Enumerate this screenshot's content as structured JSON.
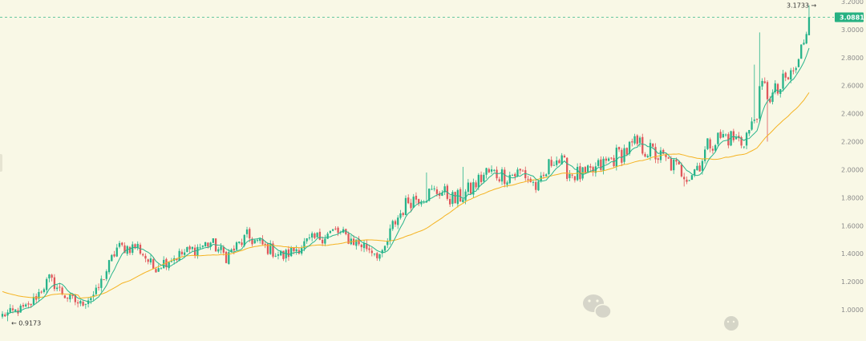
{
  "colors": {
    "background": "#f9f8e6",
    "up": "#26b38a",
    "down": "#e0575b",
    "ma_short": "#28b58c",
    "ma_long": "#f5b322",
    "grid_line": "#39b98b",
    "price_badge": "#27b182",
    "axis_text": "#8a8a8a"
  },
  "chart_data": {
    "type": "candlestick",
    "title": "",
    "y_axis": {
      "position": "right",
      "ylim": [
        0.85,
        3.2
      ],
      "ticks": [
        "3.2000",
        "3.0000",
        "2.8000",
        "2.6000",
        "2.4000",
        "2.2000",
        "2.0000",
        "1.8000",
        "1.6000",
        "1.4000",
        "1.2000",
        "1.0000"
      ]
    },
    "current_price": {
      "label": "3.0881",
      "value": 3.0881
    },
    "annotations": {
      "high": {
        "label": "3.1733 →",
        "value": 3.1733
      },
      "low": {
        "label": "← 0.9173",
        "value": 0.9173
      }
    },
    "close_anchors": [
      [
        0,
        0.96
      ],
      [
        10,
        1.02
      ],
      [
        18,
        1.22
      ],
      [
        24,
        1.1
      ],
      [
        30,
        1.04
      ],
      [
        36,
        1.12
      ],
      [
        44,
        1.44
      ],
      [
        52,
        1.45
      ],
      [
        58,
        1.3
      ],
      [
        64,
        1.36
      ],
      [
        72,
        1.42
      ],
      [
        80,
        1.48
      ],
      [
        86,
        1.38
      ],
      [
        94,
        1.52
      ],
      [
        100,
        1.46
      ],
      [
        108,
        1.38
      ],
      [
        114,
        1.45
      ],
      [
        122,
        1.52
      ],
      [
        128,
        1.56
      ],
      [
        134,
        1.5
      ],
      [
        142,
        1.43
      ],
      [
        146,
        1.38
      ],
      [
        150,
        1.6
      ],
      [
        156,
        1.78
      ],
      [
        162,
        1.82
      ],
      [
        168,
        1.85
      ],
      [
        174,
        1.78
      ],
      [
        180,
        1.86
      ],
      [
        186,
        1.98
      ],
      [
        194,
        1.96
      ],
      [
        200,
        1.98
      ],
      [
        206,
        1.86
      ],
      [
        212,
        2.1
      ],
      [
        218,
        1.98
      ],
      [
        224,
        1.95
      ],
      [
        232,
        2.05
      ],
      [
        238,
        2.12
      ],
      [
        244,
        2.18
      ],
      [
        250,
        2.12
      ],
      [
        256,
        2.05
      ],
      [
        260,
        2.0
      ],
      [
        264,
        1.96
      ],
      [
        268,
        2.05
      ],
      [
        272,
        2.2
      ],
      [
        278,
        2.24
      ],
      [
        284,
        2.2
      ],
      [
        288,
        2.3
      ],
      [
        292,
        2.58
      ],
      [
        296,
        2.52
      ],
      [
        300,
        2.6
      ],
      [
        304,
        2.7
      ],
      [
        306,
        2.75
      ],
      [
        308,
        2.95
      ],
      [
        310,
        3.0881
      ]
    ],
    "spikes": [
      {
        "i": 291,
        "high": 2.98
      },
      {
        "i": 289,
        "high": 2.75
      },
      {
        "i": 294,
        "low": 2.2
      },
      {
        "i": 163,
        "high": 1.98
      },
      {
        "i": 177,
        "high": 2.02
      },
      {
        "i": 262,
        "low": 1.88
      },
      {
        "i": 310,
        "high": 3.1733
      },
      {
        "i": 2,
        "low": 0.9173
      }
    ],
    "ma_short_period": 7,
    "ma_long_period": 30
  }
}
